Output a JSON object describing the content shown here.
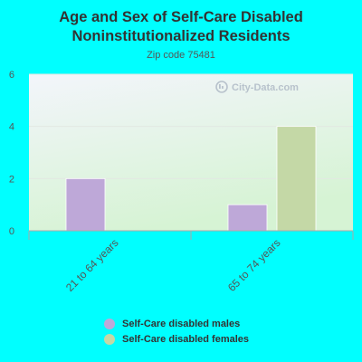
{
  "colors": {
    "background": "#00FFFF",
    "plot_top": "#F3F5FB",
    "plot_bottom": "#D6F3D4",
    "males": "#BEA8D8",
    "females": "#C4D8A6"
  },
  "watermark": "City-Data.com",
  "chart_data": {
    "type": "bar",
    "title_lines": [
      "Age and Sex of Self-Care Disabled",
      "Noninstitutionalized Residents"
    ],
    "subtitle": "Zip code 75481",
    "categories": [
      "21 to 64 years",
      "65 to 74 years"
    ],
    "series": [
      {
        "name": "Self-Care disabled males",
        "values": [
          2,
          1
        ]
      },
      {
        "name": "Self-Care disabled females",
        "values": [
          0,
          4
        ]
      }
    ],
    "yticks": [
      "0",
      "2",
      "4",
      "6"
    ],
    "ylim": [
      0,
      6
    ],
    "grid": true,
    "legend_position": "bottom"
  }
}
